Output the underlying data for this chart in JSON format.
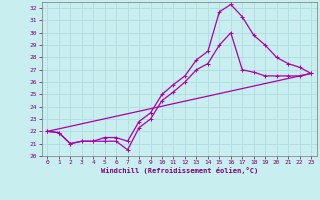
{
  "xlabel": "Windchill (Refroidissement éolien,°C)",
  "bg_color": "#c8eef0",
  "grid_color": "#b0dde0",
  "line_color": "#aa00aa",
  "xlim": [
    -0.5,
    23.5
  ],
  "ylim": [
    20,
    32.5
  ],
  "yticks": [
    20,
    21,
    22,
    23,
    24,
    25,
    26,
    27,
    28,
    29,
    30,
    31,
    32
  ],
  "xticks": [
    0,
    1,
    2,
    3,
    4,
    5,
    6,
    7,
    8,
    9,
    10,
    11,
    12,
    13,
    14,
    15,
    16,
    17,
    18,
    19,
    20,
    21,
    22,
    23
  ],
  "series1_x": [
    0,
    1,
    2,
    3,
    4,
    5,
    6,
    7,
    8,
    9,
    10,
    11,
    12,
    13,
    14,
    15,
    16,
    17,
    18,
    19,
    20,
    21,
    22,
    23
  ],
  "series1_y": [
    22.0,
    21.9,
    21.0,
    21.2,
    21.2,
    21.2,
    21.2,
    20.5,
    22.3,
    23.0,
    24.5,
    25.2,
    26.0,
    27.0,
    27.5,
    29.0,
    30.0,
    27.0,
    26.8,
    26.5,
    26.5,
    26.5,
    26.5,
    26.7
  ],
  "series2_x": [
    0,
    1,
    2,
    3,
    4,
    5,
    6,
    7,
    8,
    9,
    10,
    11,
    12,
    13,
    14,
    15,
    16,
    17,
    18,
    19,
    20,
    21,
    22,
    23
  ],
  "series2_y": [
    22.0,
    21.9,
    21.0,
    21.2,
    21.2,
    21.5,
    21.5,
    21.2,
    22.8,
    23.5,
    25.0,
    25.8,
    26.5,
    27.8,
    28.5,
    31.7,
    32.3,
    31.3,
    29.8,
    29.0,
    28.0,
    27.5,
    27.2,
    26.7
  ],
  "series3_x": [
    0,
    23
  ],
  "series3_y": [
    22.0,
    26.7
  ],
  "marker_size": 2.5,
  "line_width": 0.9
}
